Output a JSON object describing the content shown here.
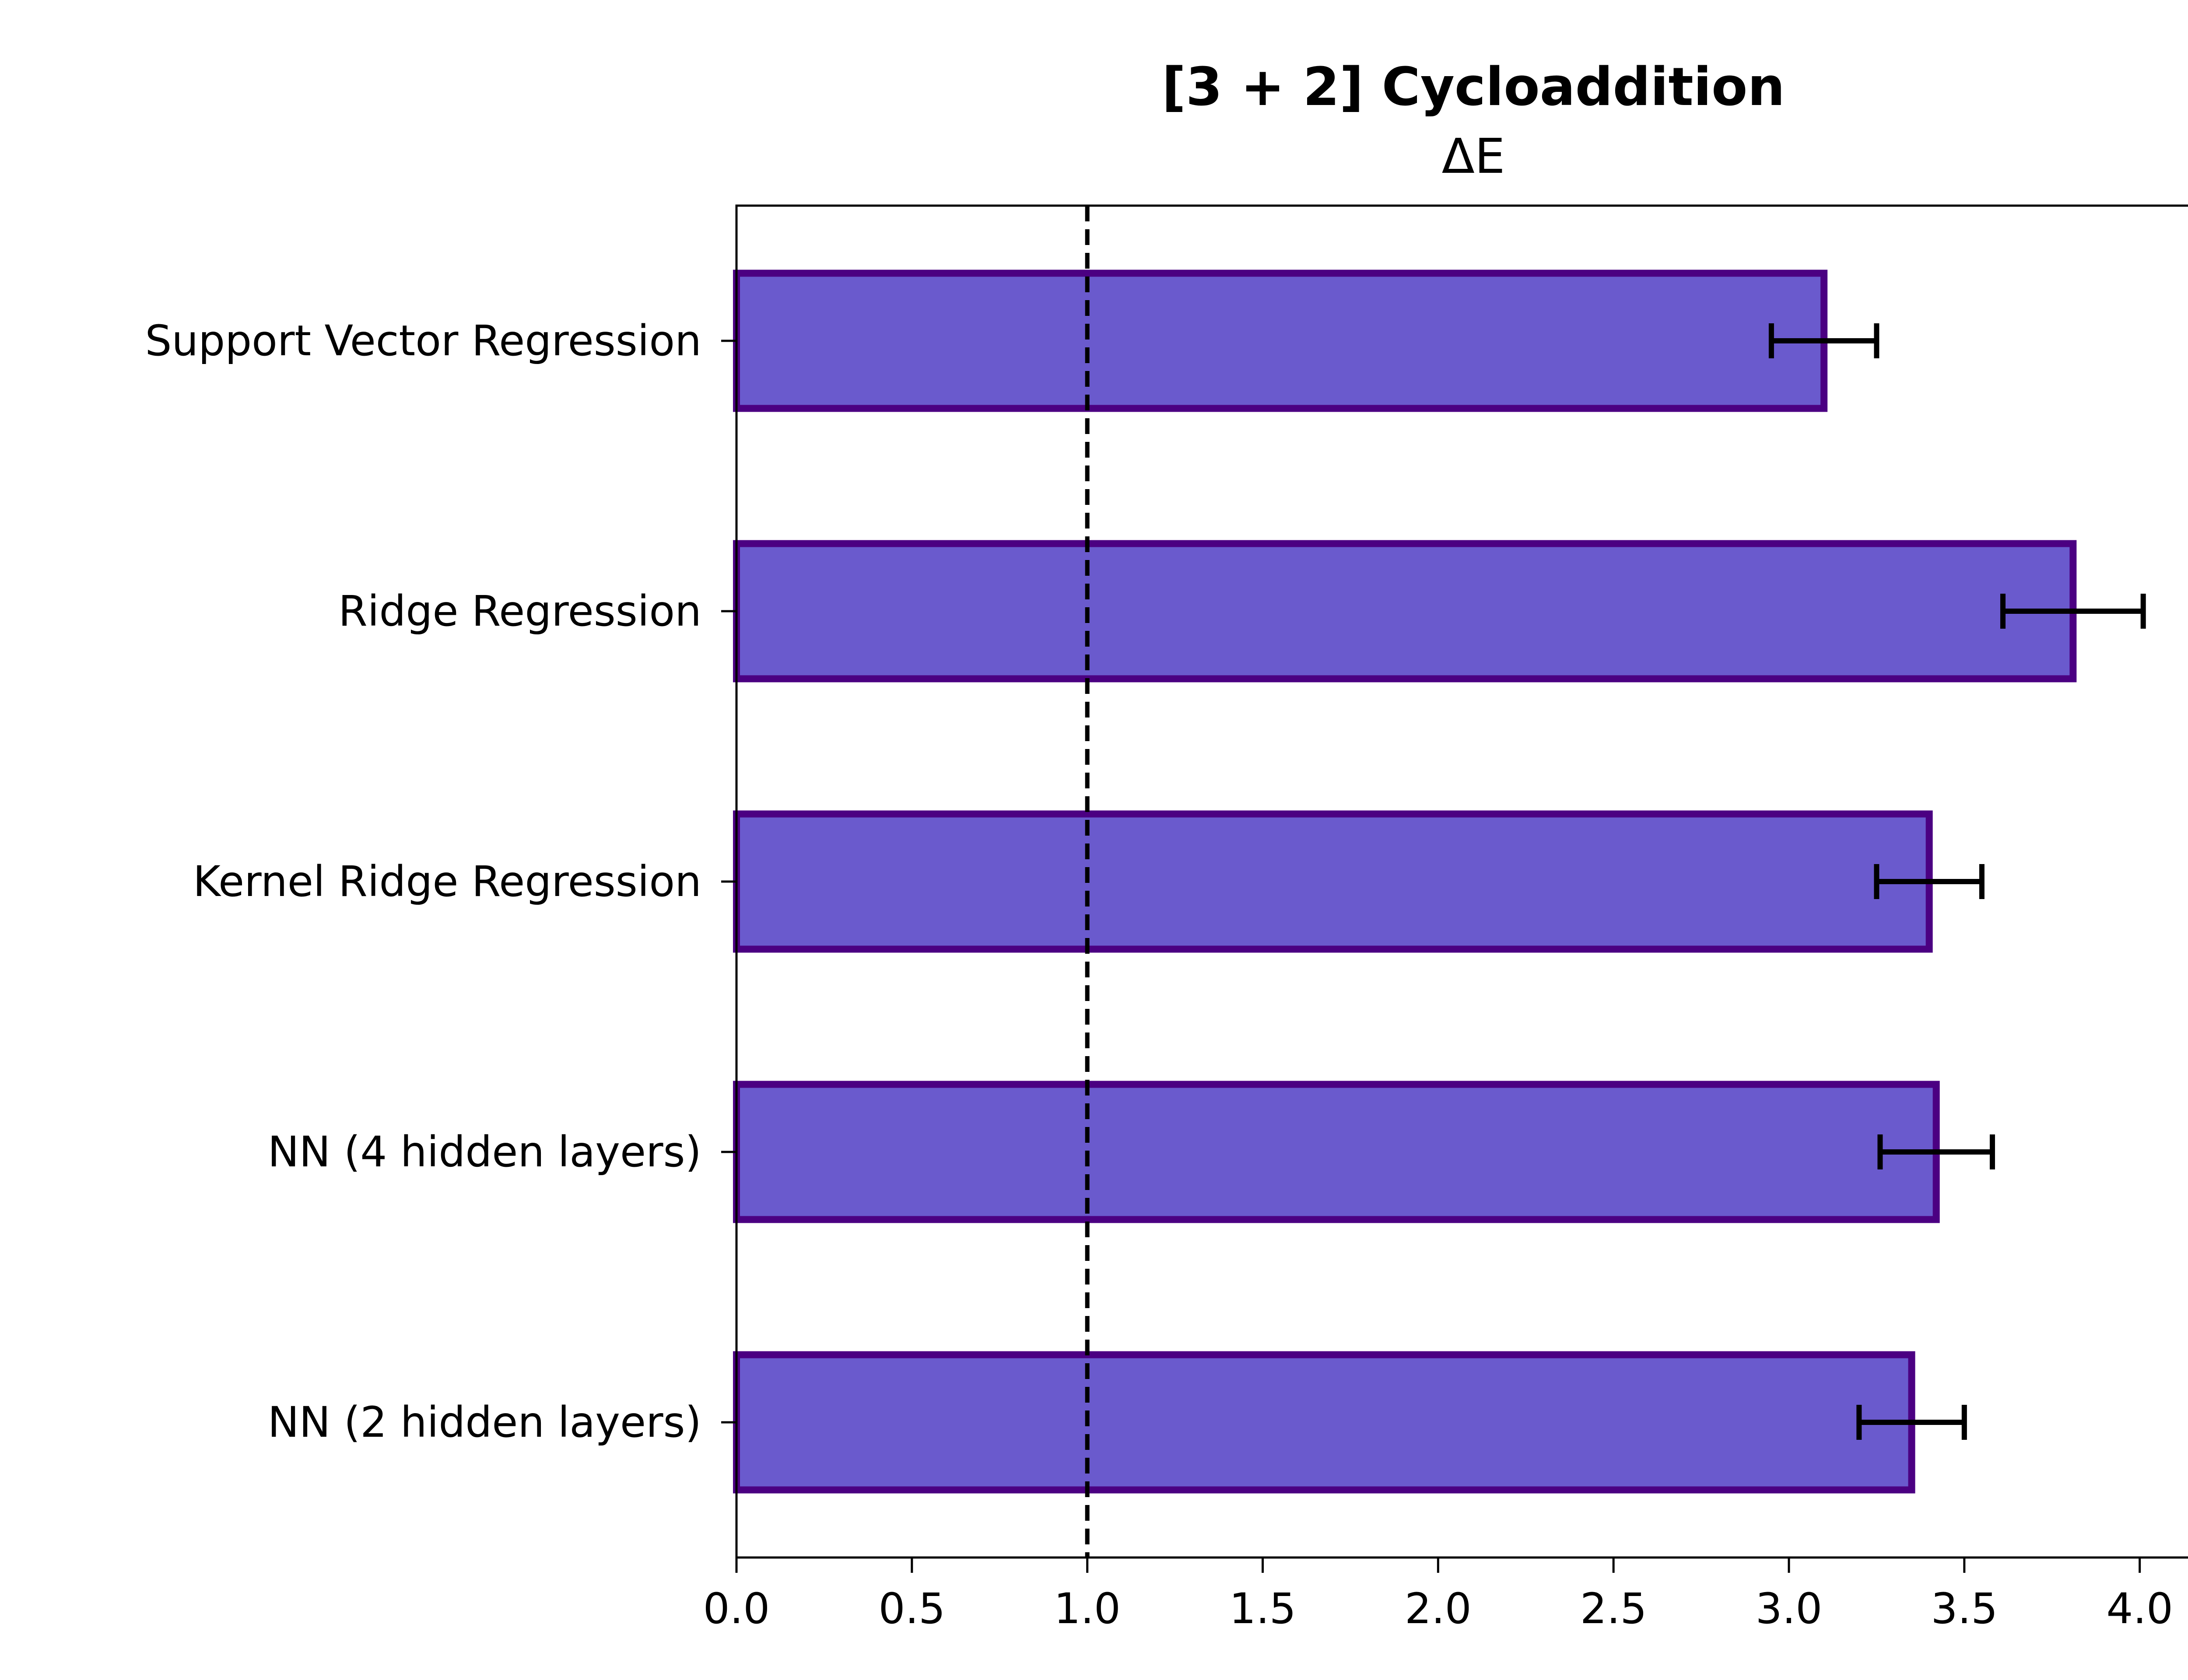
{
  "chart_data": {
    "type": "bar",
    "orientation": "horizontal",
    "title": "[3 + 2] Cycloaddition",
    "subtitle": "ΔE",
    "xlabel": "",
    "ylabel": "",
    "xlim": [
      0.0,
      4.2
    ],
    "xticks": [
      0.0,
      0.5,
      1.0,
      1.5,
      2.0,
      2.5,
      3.0,
      3.5,
      4.0
    ],
    "xtick_labels": [
      "0.0",
      "0.5",
      "1.0",
      "1.5",
      "2.0",
      "2.5",
      "3.0",
      "3.5",
      "4.0"
    ],
    "categories": [
      "Support Vector Regression",
      "Ridge Regression",
      "Kernel Ridge Regression",
      "NN (4 hidden layers)",
      "NN (2 hidden layers)"
    ],
    "values": [
      3.1,
      3.81,
      3.4,
      3.42,
      3.35
    ],
    "errors": [
      0.15,
      0.2,
      0.15,
      0.16,
      0.15
    ],
    "reference_line": {
      "x": 1.0,
      "style": "dashed",
      "color": "#000000"
    },
    "grid": false,
    "colors": {
      "bar_fill": "#6a5acd",
      "bar_edge": "#4b0082",
      "error_bar": "#000000"
    }
  }
}
